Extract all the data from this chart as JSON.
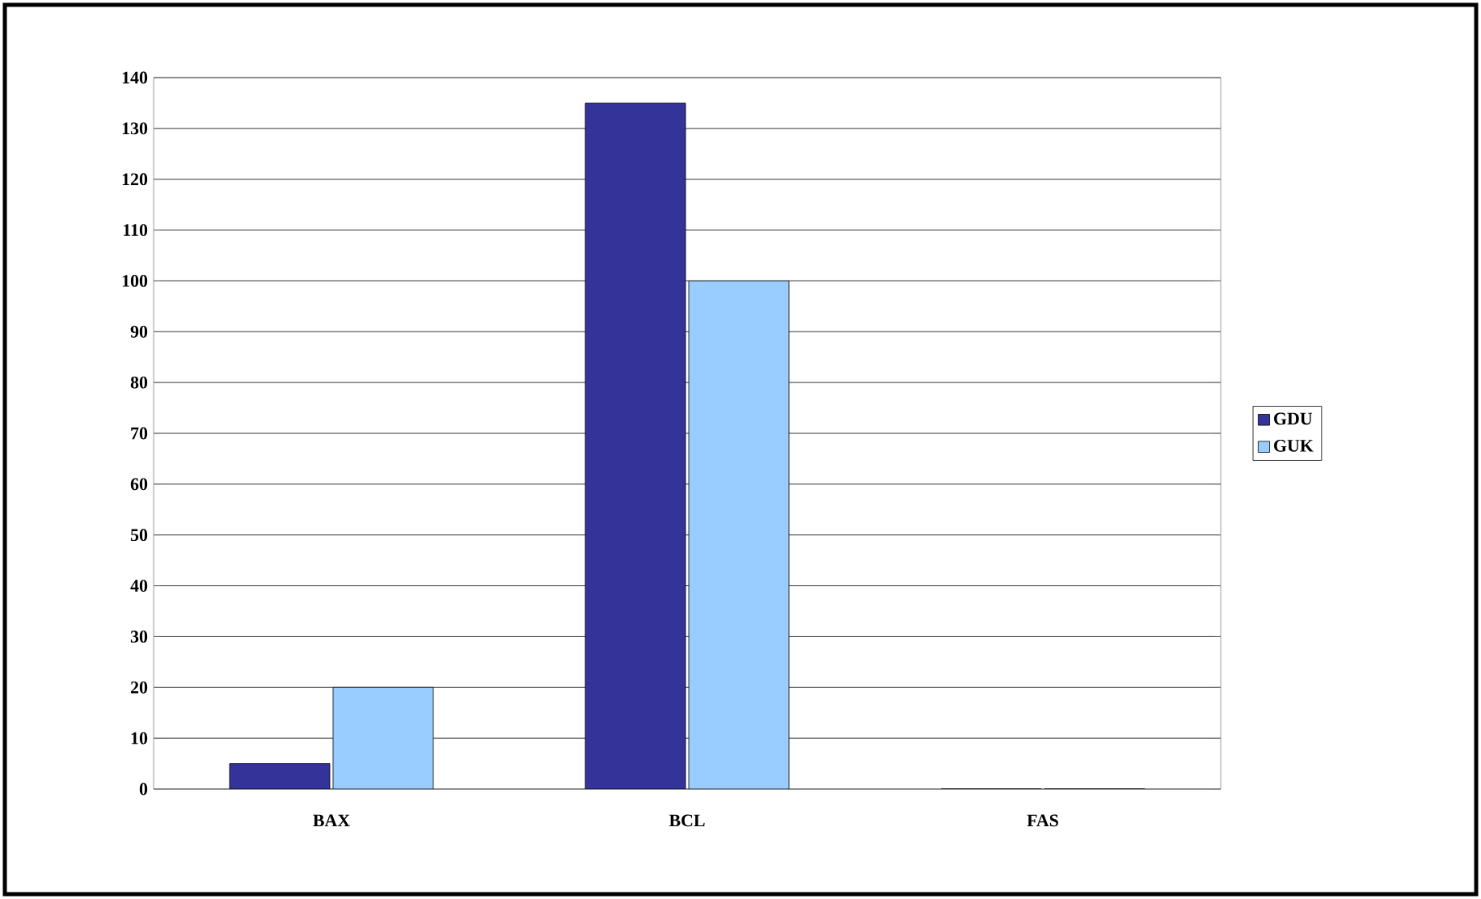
{
  "chart_data": {
    "type": "bar",
    "categories": [
      "BAX",
      "BCL",
      "FAS"
    ],
    "series": [
      {
        "name": "GDU",
        "color": "#333399",
        "values": [
          5,
          135,
          0
        ]
      },
      {
        "name": "GUK",
        "color": "#99ccff",
        "values": [
          20,
          100,
          0
        ]
      }
    ],
    "ylim": [
      0,
      140
    ],
    "yticks": [
      0,
      10,
      20,
      30,
      40,
      50,
      60,
      70,
      80,
      90,
      100,
      110,
      120,
      130,
      140
    ],
    "grid": "y",
    "legend": "right"
  }
}
